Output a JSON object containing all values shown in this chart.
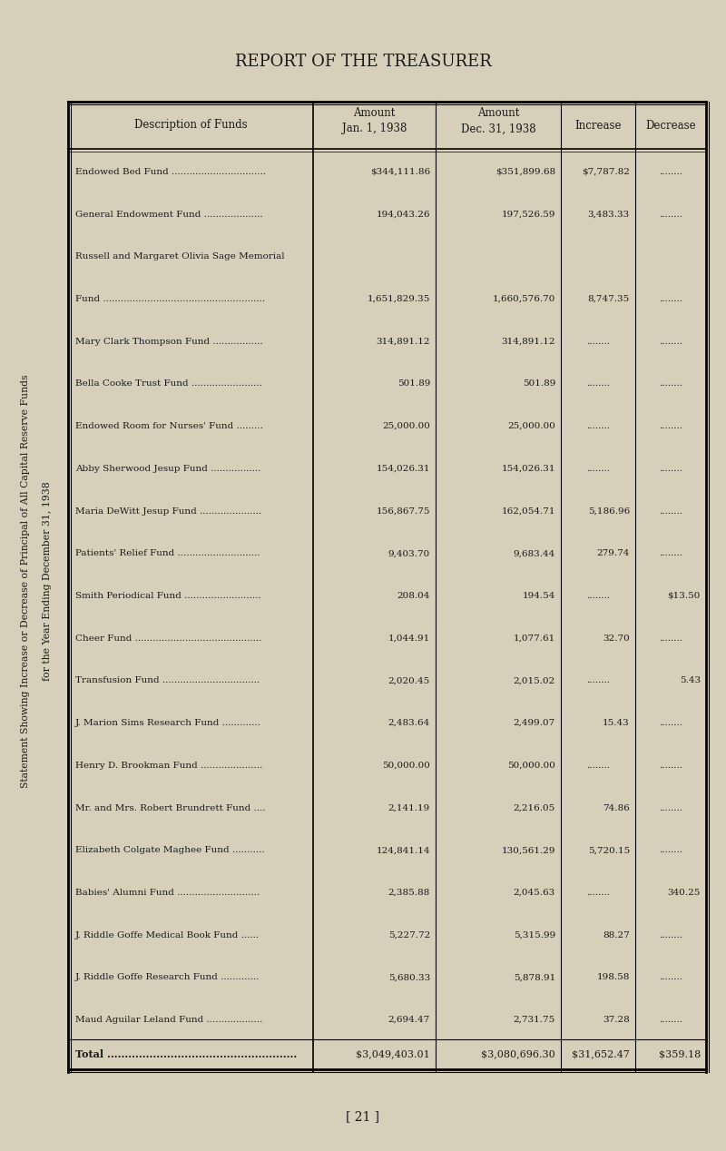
{
  "page_title": "REPORT OF THE TREASURER",
  "side_title_line1": "Statement Showing Increase or Decrease of Principal of All Capital Reserve Funds",
  "side_title_line2": "for the Year Ending December 31, 1938",
  "col_headers": [
    "Description of Funds",
    "Amount\nJan. 1, 1938",
    "Amount\nDec. 31, 1938",
    "Increase",
    "Decrease"
  ],
  "rows": [
    [
      "Endowed Bed Fund ................................",
      "$344,111.86",
      "$351,899.68",
      "$7,787.82",
      "........"
    ],
    [
      "General Endowment Fund ....................",
      "194,043.26",
      "197,526.59",
      "3,483.33",
      "........"
    ],
    [
      "Russell and Margaret Olivia Sage Memorial",
      "",
      "",
      "",
      ""
    ],
    [
      "Fund .......................................................",
      "1,651,829.35",
      "1,660,576.70",
      "8,747.35",
      "........"
    ],
    [
      "Mary Clark Thompson Fund .................",
      "314,891.12",
      "314,891.12",
      "........",
      "........"
    ],
    [
      "Bella Cooke Trust Fund ........................",
      "501.89",
      "501.89",
      "........",
      "........"
    ],
    [
      "Endowed Room for Nurses' Fund .........",
      "25,000.00",
      "25,000.00",
      "........",
      "........"
    ],
    [
      "Abby Sherwood Jesup Fund .................",
      "154,026.31",
      "154,026.31",
      "........",
      "........"
    ],
    [
      "Maria DeWitt Jesup Fund .....................",
      "156,867.75",
      "162,054.71",
      "5,186.96",
      "........"
    ],
    [
      "Patients' Relief Fund ............................",
      "9,403.70",
      "9,683.44",
      "279.74",
      "........"
    ],
    [
      "Smith Periodical Fund ..........................",
      "208.04",
      "194.54",
      "........",
      "$13.50"
    ],
    [
      "Cheer Fund ...........................................",
      "1,044.91",
      "1,077.61",
      "32.70",
      "........"
    ],
    [
      "Transfusion Fund .................................",
      "2,020.45",
      "2,015.02",
      "........",
      "5.43"
    ],
    [
      "J. Marion Sims Research Fund .............",
      "2,483.64",
      "2,499.07",
      "15.43",
      "........"
    ],
    [
      "Henry D. Brookman Fund .....................",
      "50,000.00",
      "50,000.00",
      "........",
      "........"
    ],
    [
      "Mr. and Mrs. Robert Brundrett Fund ....",
      "2,141.19",
      "2,216.05",
      "74.86",
      "........"
    ],
    [
      "Elizabeth Colgate Maghee Fund ...........",
      "124,841.14",
      "130,561.29",
      "5,720.15",
      "........"
    ],
    [
      "Babies' Alumni Fund ............................",
      "2,385.88",
      "2,045.63",
      "........",
      "340.25"
    ],
    [
      "J. Riddle Goffe Medical Book Fund ......",
      "5,227.72",
      "5,315.99",
      "88.27",
      "........"
    ],
    [
      "J. Riddle Goffe Research Fund .............",
      "5,680.33",
      "5,878.91",
      "198.58",
      "........"
    ],
    [
      "Maud Aguilar Leland Fund ...................",
      "2,694.47",
      "2,731.75",
      "37.28",
      "........"
    ]
  ],
  "total_row": [
    "Total ......................................................",
    "$3,049,403.01",
    "$3,080,696.30",
    "$31,652.47",
    "$359.18"
  ],
  "page_number": "[ 21 ]",
  "bg_color": "#d6d0bb",
  "text_color": "#1a1a1a"
}
